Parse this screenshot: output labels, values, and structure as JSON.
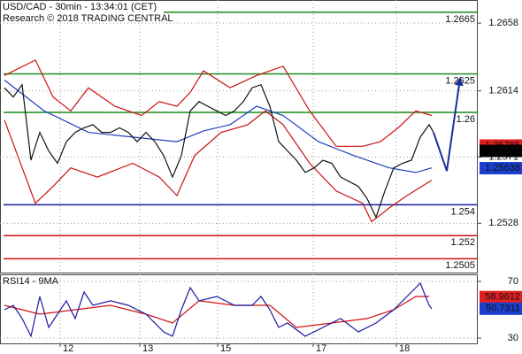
{
  "chart_data": [
    {
      "type": "line",
      "title": "USD/CAD - 30min - 13:34:01 (CET)",
      "subtitle": "Research © 2018 TRADING CENTRAL",
      "xlim": [
        0,
        270
      ],
      "ylim": [
        1.2496,
        1.2673
      ],
      "yticks": [
        1.2528,
        1.2571,
        1.2614,
        1.2658
      ],
      "grid": true,
      "series": [
        {
          "color": "#cc1111",
          "x": [
            2.5,
            20,
            30,
            40,
            50,
            65,
            80,
            90,
            100,
            107.5,
            115,
            130,
            145,
            160,
            175,
            190,
            205,
            215,
            225,
            235,
            244
          ],
          "values": [
            1.2624,
            1.2634,
            1.261,
            1.2601,
            1.2616,
            1.2604,
            1.2598,
            1.2607,
            1.2604,
            1.2613,
            1.2627,
            1.2616,
            1.2624,
            1.263,
            1.2601,
            1.2578,
            1.2578,
            1.2581,
            1.259,
            1.2601,
            1.2598
          ]
        },
        {
          "color": "#cc1111",
          "x": [
            2.5,
            20,
            30,
            40,
            55,
            75,
            90,
            100,
            110,
            125,
            140,
            150,
            160,
            175,
            190,
            205,
            210,
            220,
            230,
            244
          ],
          "values": [
            1.2595,
            1.2541,
            1.2552,
            1.2564,
            1.2558,
            1.2567,
            1.2558,
            1.2546,
            1.2572,
            1.2587,
            1.2592,
            1.2601,
            1.2592,
            1.2567,
            1.2549,
            1.2541,
            1.2529,
            1.2538,
            1.2546,
            1.2556
          ]
        },
        {
          "color": "#1f3fbf",
          "x": [
            2.5,
            25,
            50,
            75,
            100,
            115,
            130,
            145,
            160,
            180,
            200,
            220,
            235,
            244
          ],
          "values": [
            1.2621,
            1.2601,
            1.2587,
            1.2584,
            1.2581,
            1.2588,
            1.2592,
            1.2604,
            1.2598,
            1.2581,
            1.2572,
            1.2564,
            1.2561,
            1.2564
          ]
        },
        {
          "color": "#111111",
          "x": [
            2.5,
            7.5,
            12.5,
            17.5,
            22.5,
            27.5,
            32.5,
            37.5,
            42.5,
            47.5,
            52.5,
            57.5,
            62.5,
            67.5,
            72.5,
            77.5,
            82.5,
            87.5,
            92.5,
            97.5,
            102.5,
            107.5,
            112.5,
            117.5,
            122.5,
            127.5,
            132.5,
            137.5,
            142.5,
            147.5,
            152.5,
            157.5,
            162.5,
            167.5,
            172.5,
            177.5,
            182.5,
            187.5,
            192.5,
            197.5,
            202.5,
            207.5,
            212.5,
            217.5,
            222.5,
            227.5,
            232.5,
            237.5,
            242.5,
            245
          ],
          "values": [
            1.2616,
            1.261,
            1.2618,
            1.2569,
            1.2587,
            1.2575,
            1.2567,
            1.2581,
            1.2587,
            1.259,
            1.2592,
            1.2587,
            1.2587,
            1.259,
            1.2587,
            1.2581,
            1.2587,
            1.2581,
            1.2572,
            1.2558,
            1.2572,
            1.2601,
            1.2607,
            1.2604,
            1.2601,
            1.2598,
            1.2601,
            1.2607,
            1.2616,
            1.2618,
            1.2604,
            1.2581,
            1.2575,
            1.2569,
            1.2561,
            1.2564,
            1.2569,
            1.2567,
            1.2558,
            1.2555,
            1.2552,
            1.2544,
            1.2532,
            1.2549,
            1.2564,
            1.2567,
            1.2569,
            1.2584,
            1.2592,
            1.2587
          ]
        }
      ],
      "projection": {
        "color": "#1a2f9a",
        "x": [
          245,
          252.5,
          260
        ],
        "values": [
          1.2587,
          1.2562,
          1.2622
        ]
      },
      "levels": [
        {
          "value": 1.2665,
          "color": "#1a8a1a",
          "from": 92.5
        },
        {
          "value": 1.2625,
          "color": "#1a8a1a"
        },
        {
          "value": 1.26,
          "color": "#1a8a1a"
        },
        {
          "value": 1.254,
          "color": "#1a1aa0"
        },
        {
          "value": 1.252,
          "color": "#d01010"
        },
        {
          "value": 1.2505,
          "color": "#d01010"
        }
      ],
      "tags": [
        {
          "value": 1.25785,
          "color": "#e02020"
        },
        {
          "value": 1.2575,
          "color": "#000000"
        },
        {
          "value": 1.25638,
          "color": "#1a3fcf"
        }
      ]
    },
    {
      "type": "line",
      "title": "RSI14 - 9MA",
      "xlim": [
        0,
        270
      ],
      "ylim": [
        26.25,
        75
      ],
      "yticks": [
        30,
        70
      ],
      "xticks": [
        {
          "value": 34,
          "label": "12"
        },
        {
          "value": 79,
          "label": "13"
        },
        {
          "value": 123,
          "label": "15"
        },
        {
          "value": 177,
          "label": "17"
        },
        {
          "value": 224,
          "label": "18"
        }
      ],
      "grid": true,
      "series": [
        {
          "color": "#d01010",
          "x": [
            2.5,
            22.5,
            42.5,
            62.5,
            82.5,
            97.5,
            112.5,
            132.5,
            152.5,
            167.5,
            187.5,
            207.5,
            222.5,
            235,
            242.5
          ],
          "values": [
            53.1,
            46.9,
            50,
            53.1,
            46.9,
            40.6,
            56.3,
            53.1,
            53.1,
            37.5,
            40.6,
            43.8,
            50,
            59.4,
            59.4
          ]
        },
        {
          "color": "#1a1aa0",
          "x": [
            2.5,
            7.5,
            12.5,
            17.5,
            22.5,
            27.5,
            32.5,
            37.5,
            42.5,
            47.5,
            52.5,
            62.5,
            72.5,
            82.5,
            92.5,
            97.5,
            102.5,
            107.5,
            112.5,
            122.5,
            132.5,
            142.5,
            147.5,
            152.5,
            157.5,
            162.5,
            172.5,
            182.5,
            192.5,
            202.5,
            212.5,
            222.5,
            232.5,
            237.5,
            242.5,
            244
          ],
          "values": [
            50,
            53.1,
            43.8,
            31.3,
            59.4,
            37.5,
            46.9,
            56.3,
            43.8,
            62.5,
            53.1,
            56.3,
            53.1,
            46.9,
            34.4,
            31.3,
            50,
            65.6,
            56.3,
            59.4,
            53.1,
            53.1,
            59.4,
            50,
            37.5,
            40.6,
            31.3,
            37.5,
            43.8,
            34.4,
            40.6,
            50,
            62.5,
            68.8,
            53.1,
            50.7
          ]
        }
      ],
      "tags": [
        {
          "value": 58.9612,
          "color": "#e02020"
        },
        {
          "value": 50.7311,
          "color": "#1a3fcf"
        }
      ]
    }
  ]
}
